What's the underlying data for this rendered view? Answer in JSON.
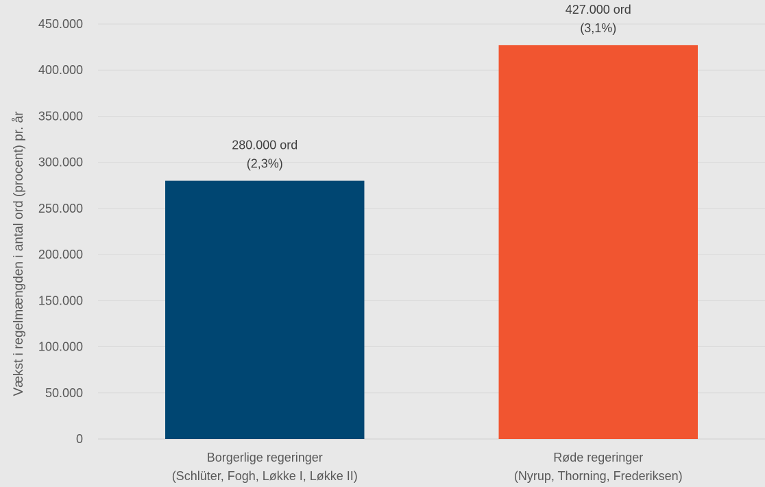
{
  "chart_data": {
    "type": "bar",
    "ylabel": "Vækst i regelmængden i antal ord (procent) pr. år",
    "ylim": [
      0,
      450000
    ],
    "ytick_values": [
      0,
      50000,
      100000,
      150000,
      200000,
      250000,
      300000,
      350000,
      400000,
      450000
    ],
    "ytick_labels": [
      "0",
      "50.000",
      "100.000",
      "150.000",
      "200.000",
      "250.000",
      "300.000",
      "350.000",
      "400.000",
      "450.000"
    ],
    "grid": true,
    "categories": [
      {
        "line1": "Borgerlige regeringer",
        "line2": "(Schlüter, Fogh, Løkke I, Løkke II)"
      },
      {
        "line1": "Røde regeringer",
        "line2": "(Nyrup, Thorning, Frederiksen)"
      }
    ],
    "values": [
      280000,
      427000
    ],
    "data_labels": [
      {
        "line1": "280.000 ord",
        "line2": "(2,3%)"
      },
      {
        "line1": "427.000 ord",
        "line2": "(3,1%)"
      }
    ],
    "colors": [
      "#004672",
      "#f15530"
    ]
  }
}
